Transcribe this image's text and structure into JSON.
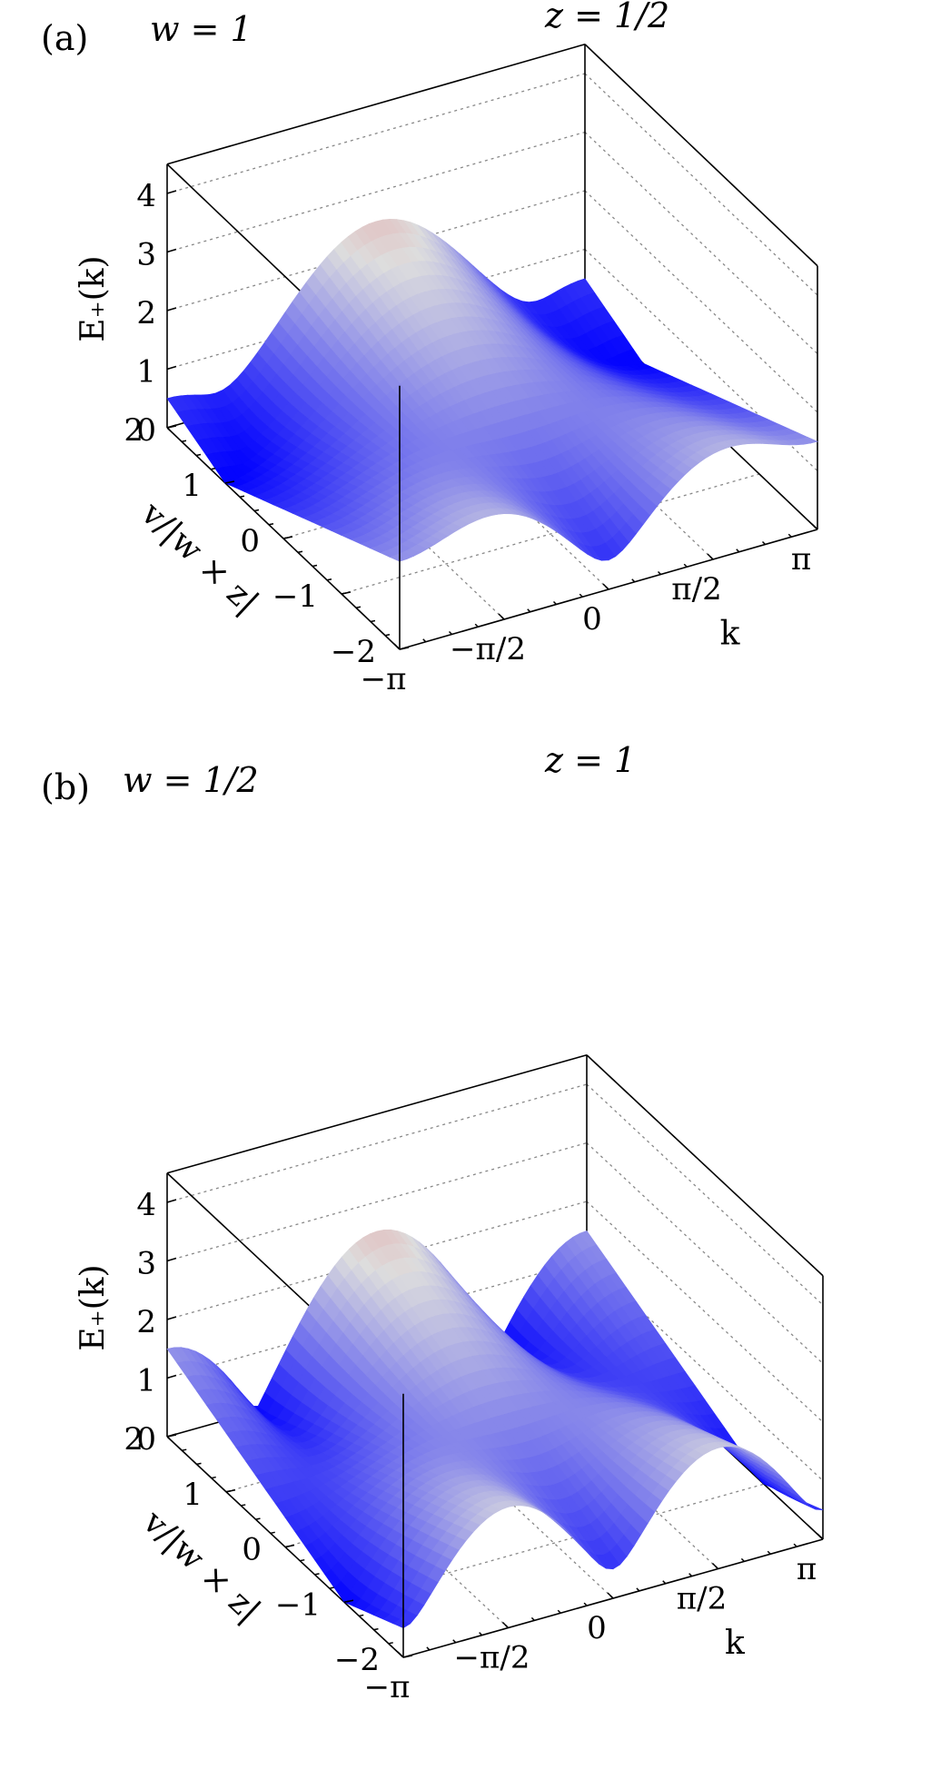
{
  "chart_data": [
    {
      "type": "surface",
      "panel_label": "(a)",
      "w_label": "w = 1",
      "z_label": "z = 1/2",
      "w": 1,
      "z": 0.5,
      "zlabel": "E₊(k)",
      "xlabel": "k",
      "ylabel": "v/|w × z|",
      "xlim": [
        -3.14159,
        3.14159
      ],
      "ylim": [
        -2,
        2
      ],
      "zlim": [
        0,
        4.5
      ],
      "zticks": [
        "0",
        "1",
        "2",
        "3",
        "4"
      ],
      "xticks": [
        "−π",
        "−π/2",
        "0",
        "π/2",
        "π"
      ],
      "yticks": [
        "−2",
        "−1",
        "0",
        "1",
        "2"
      ],
      "colormap": [
        "#0000ff",
        "#dddddd",
        "#ff0000"
      ]
    },
    {
      "type": "surface",
      "panel_label": "(b)",
      "w_label": "w = 1/2",
      "z_label": "z = 1",
      "w": 0.5,
      "z": 1,
      "zlabel": "E₊(k)",
      "xlabel": "k",
      "ylabel": "v/|w × z|",
      "xlim": [
        -3.14159,
        3.14159
      ],
      "ylim": [
        -2,
        2
      ],
      "zlim": [
        0,
        4.5
      ],
      "zticks": [
        "0",
        "1",
        "2",
        "3",
        "4"
      ],
      "xticks": [
        "−π",
        "−π/2",
        "0",
        "π/2",
        "π"
      ],
      "yticks": [
        "−2",
        "−1",
        "0",
        "1",
        "2"
      ],
      "colormap": [
        "#0000ff",
        "#dddddd",
        "#ff0000"
      ]
    }
  ]
}
